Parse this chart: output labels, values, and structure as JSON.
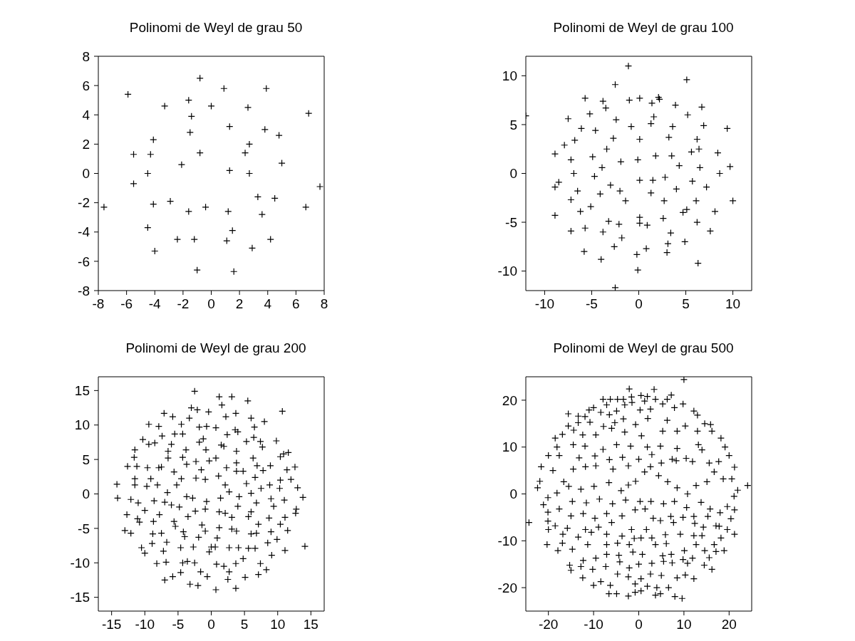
{
  "chart_data": [
    {
      "type": "scatter",
      "title": "Polinomi de Weyl de grau 50",
      "marker": "cross",
      "color": "#000000",
      "xlim": [
        -8,
        8
      ],
      "ylim": [
        -8,
        8
      ],
      "xticks": [
        -8,
        -6,
        -4,
        -2,
        0,
        2,
        4,
        6,
        8
      ],
      "yticks": [
        -8,
        -6,
        -4,
        -2,
        0,
        2,
        4,
        6,
        8
      ],
      "x": [
        -0.8,
        -5.9,
        0.9,
        3.9,
        -1.6,
        -3.3,
        0,
        2.6,
        6.9,
        -1.4,
        1.3,
        3.8,
        4.8,
        -1.5,
        -4.1,
        2.7,
        -5.5,
        -4.3,
        -0.8,
        2.4,
        -2.1,
        5.0,
        1.3,
        2.7,
        -4.5,
        -5.5,
        7.7,
        3.3,
        4.5,
        -7.6,
        -2.9,
        -4.1,
        -0.4,
        -1.6,
        1.2,
        6.7,
        3.6,
        -4.5,
        1.5,
        -2.4,
        -1.2,
        1.1,
        4.2,
        2.9,
        -4.0,
        -1.0,
        1.6
      ],
      "values": [
        6.5,
        5.4,
        5.8,
        5.8,
        5.0,
        4.6,
        4.6,
        4.5,
        4.1,
        3.9,
        3.2,
        3.0,
        2.6,
        2.8,
        2.3,
        2.0,
        1.3,
        1.3,
        1.4,
        1.4,
        0.6,
        0.7,
        0.2,
        0,
        0,
        -0.7,
        -0.9,
        -1.6,
        -1.7,
        -2.3,
        -1.9,
        -2.1,
        -2.3,
        -2.6,
        -2.6,
        -2.3,
        -2.8,
        -3.7,
        -3.9,
        -4.5,
        -4.5,
        -4.6,
        -4.5,
        -5.1,
        -5.3,
        -6.6,
        -6.7
      ]
    },
    {
      "type": "scatter",
      "title": "Polinomi de Weyl de grau 100",
      "marker": "cross",
      "color": "#000000",
      "xlim": [
        -12,
        12
      ],
      "ylim": [
        -12,
        12
      ],
      "xticks": [
        -10,
        -5,
        0,
        5,
        10
      ],
      "yticks": [
        -10,
        -5,
        0,
        5,
        10
      ],
      "x": [
        -1.1,
        -2.5,
        5.1,
        -5.7,
        -3.8,
        -1.0,
        0.1,
        1.4,
        2.1,
        2.2,
        3.9,
        6.7,
        -3.5,
        -5.2,
        -12.0,
        -7.5,
        -2.4,
        1.6,
        5.2,
        -0.8,
        1.3,
        3.6,
        6.9,
        9.4,
        -6.1,
        -4.6,
        -6.8,
        -7.9,
        -2.7,
        0.1,
        3.2,
        6.2,
        6.4,
        5.6,
        8.4,
        -8.9,
        -3.4,
        -4.9,
        -7.2,
        -1.9,
        -0.1,
        1.8,
        3.5,
        4.3,
        6.5,
        9.7,
        -3.9,
        -6.9,
        8.6,
        -4.7,
        -8.5,
        -8.9,
        -3.0,
        0.1,
        1.5,
        2.8,
        5.7,
        7.2,
        -6.5,
        -2.0,
        -4.1,
        1.3,
        4.0,
        -7.2,
        -1.4,
        2.7,
        6.1,
        10.0,
        -5.1,
        -6.2,
        8.1,
        5.1,
        4.7,
        0.1,
        -3.2,
        -2.1,
        0.1,
        0.9,
        2.6,
        6.2,
        -8.9,
        -7.2,
        -5.7,
        -3.8,
        7.6,
        3.4,
        -1.8,
        4.9,
        3.1,
        -2.6,
        0.8,
        3.0,
        -0.2,
        -5.8,
        -4.0,
        6.3,
        -0.1,
        -2.5
      ],
      "values": [
        11.0,
        9.1,
        9.6,
        7.7,
        7.4,
        7.5,
        7.7,
        7.2,
        7.8,
        7.6,
        7.0,
        6.8,
        6.7,
        6.1,
        5.9,
        5.6,
        5.5,
        5.8,
        6.0,
        4.8,
        5.1,
        4.8,
        4.9,
        4.6,
        4.6,
        4.4,
        3.4,
        2.9,
        3.6,
        3.5,
        3.7,
        3.5,
        2.5,
        2.2,
        2.1,
        2.0,
        2.5,
        1.7,
        1.4,
        1.2,
        1.4,
        1.8,
        1.8,
        0.8,
        0.6,
        0.7,
        0.6,
        0.0,
        0.0,
        -0.3,
        -0.9,
        -1.4,
        -1.2,
        -0.7,
        -0.7,
        -0.4,
        -0.8,
        -1.4,
        -1.8,
        -1.8,
        -2.1,
        -2.0,
        -1.6,
        -2.7,
        -2.8,
        -2.8,
        -2.8,
        -2.8,
        -3.4,
        -3.9,
        -3.9,
        -3.7,
        -4.0,
        -4.5,
        -4.9,
        -5.2,
        -5.1,
        -5.3,
        -4.6,
        -5.0,
        -4.3,
        -5.9,
        -5.6,
        -6.0,
        -5.9,
        -6.1,
        -6.6,
        -7.0,
        -7.2,
        -7.5,
        -7.7,
        -8.1,
        -8.3,
        -8.0,
        -8.8,
        -9.2,
        -9.9,
        -11.7
      ]
    },
    {
      "type": "scatter",
      "title": "Polinomi de Weyl de grau 200",
      "marker": "cross",
      "color": "#000000",
      "xlim": [
        -17,
        17
      ],
      "ylim": [
        -17,
        17
      ],
      "xticks": [
        -15,
        -10,
        -5,
        0,
        5,
        10,
        15
      ],
      "yticks": [
        -15,
        -10,
        -5,
        0,
        5,
        10,
        15
      ],
      "x": [
        -2.5,
        1.2,
        3.1,
        5.5,
        1.6,
        -3.0,
        -2.1,
        10.7,
        -7.1,
        -5.8,
        -3.3,
        -0.4,
        2.2,
        3.7,
        6.0,
        8.0,
        -9.4,
        -7.9,
        -4.5,
        -1.8,
        -0.7,
        0.7,
        3.6,
        4.0,
        6.5,
        -10.3,
        -9.4,
        -8.5,
        -7.4,
        -5.5,
        -4.3,
        -1.2,
        -1.8,
        1.5,
        1.9,
        2.4,
        6.4,
        5.3,
        7.4,
        7.7,
        9.8,
        -11.5,
        -11.6,
        -6.5,
        -6.0,
        -6.5,
        -3.8,
        -4.3,
        -0.8,
        0.7,
        3.8,
        6.3,
        10.4,
        10.9,
        11.6,
        -12.6,
        -11.2,
        -9.6,
        -7.9,
        -7.5,
        -3.7,
        -2.3,
        -0.3,
        -1.5,
        -5.6,
        2.3,
        3.8,
        3.8,
        4.8,
        6.9,
        7.8,
        8.9,
        11.4,
        12.6,
        -14.2,
        -11.5,
        -11.5,
        -9.1,
        -9.7,
        -8.1,
        -5.2,
        -4.5,
        -2.3,
        -0.9,
        1.1,
        2.1,
        2.7,
        5.3,
        6.6,
        7.5,
        8.8,
        10.4,
        10.3,
        12.0,
        13.0,
        -14.1,
        -12.1,
        -11.0,
        -8.6,
        -7.0,
        -6.6,
        -6.0,
        -4.8,
        -3.7,
        -2.8,
        -0.7,
        1.4,
        4.2,
        6.0,
        6.8,
        9.0,
        11.0,
        13.8,
        -12.7,
        -10.0,
        -7.8,
        -0.9,
        -2.4,
        1.2,
        2.1,
        4.0,
        3.1,
        -3.5,
        6.0,
        5.6,
        8.7,
        9.4,
        12.8,
        12.7,
        11.1,
        -11.1,
        -10.8,
        -8.7,
        -5.6,
        -5.4,
        -1.4,
        -0.9,
        1.2,
        3.1,
        3.8,
        7.1,
        9.0,
        10.4,
        11.5,
        -13.0,
        -12.1,
        -8.8,
        -7.5,
        -4.2,
        -4.0,
        -1.9,
        6.0,
        6.8,
        -8.9,
        -6.7,
        0.9,
        9.9,
        -10.5,
        -10.0,
        -7.2,
        -4.6,
        -2.7,
        -0.3,
        0.0,
        0.6,
        2.7,
        4.1,
        5.6,
        6.6,
        8.5,
        11.1,
        14.1,
        9.1,
        -8.2,
        -6.8,
        -4.3,
        -3.6,
        -2.5,
        0.8,
        1.9,
        3.7,
        4.8,
        7.4,
        8.3,
        7.1,
        2.7,
        -1.6,
        -0.6,
        -4.6,
        -5.8,
        -7.0,
        2.5,
        5.1,
        -3.2,
        -2.0,
        0.7,
        3.7
      ],
      "values": [
        14.9,
        14.1,
        14.1,
        13.5,
        12.9,
        12.5,
        12.2,
        12.0,
        11.7,
        11.2,
        11.0,
        11.9,
        11.2,
        11.7,
        11.0,
        10.5,
        10.1,
        9.8,
        10.1,
        9.7,
        9.8,
        9.6,
        9.3,
        9.0,
        9.7,
        7.9,
        7.2,
        7.4,
        8.4,
        8.7,
        8.7,
        8.0,
        7.5,
        7.1,
        6.9,
        8.6,
        8.2,
        7.6,
        7.6,
        6.8,
        7.7,
        6.4,
        5.3,
        6.2,
        7.2,
        5.2,
        6.4,
        5.3,
        6.4,
        5.2,
        6.2,
        5.2,
        5.4,
        5.8,
        6.0,
        4.0,
        4.0,
        3.8,
        3.8,
        3.9,
        4.3,
        4.7,
        4.8,
        3.5,
        3.2,
        3.8,
        4.5,
        3.3,
        3.3,
        4.1,
        3.4,
        4.1,
        3.5,
        3.9,
        1.4,
        2.2,
        1.3,
        2.2,
        1.1,
        1.3,
        1.3,
        2.2,
        2.3,
        2.1,
        2.6,
        1.3,
        0.3,
        1.5,
        2.4,
        0.8,
        1.3,
        2.0,
        0.8,
        2.1,
        0.9,
        -0.6,
        -0.8,
        -1.3,
        -1.0,
        -1.2,
        0.2,
        -1.6,
        -1.9,
        -0.4,
        -0.6,
        -1.1,
        -0.6,
        -0.4,
        0.1,
        -1.3,
        -0.7,
        -0.9,
        -0.5,
        -3.0,
        -2.4,
        -3.0,
        -2.2,
        -2.5,
        -2.6,
        -2.8,
        -1.8,
        -3.4,
        -3.3,
        -2.6,
        -3.3,
        -3.5,
        -1.8,
        -2.2,
        -2.8,
        -3.4,
        -3.6,
        -4.1,
        -4.0,
        -4.0,
        -4.7,
        -4.5,
        -5.4,
        -4.9,
        -5.1,
        -5.4,
        -4.4,
        -5.5,
        -4.4,
        -5.3,
        -5.3,
        -5.7,
        -5.8,
        -5.7,
        -5.5,
        -6.2,
        -6.3,
        -5.8,
        -5.7,
        -7.2,
        -7.0,
        -6.4,
        -6.6,
        -7.8,
        -8.6,
        -8.3,
        -7.8,
        -7.7,
        -8.4,
        -7.7,
        -7.7,
        -7.8,
        -7.8,
        -7.9,
        -7.9,
        -7.1,
        -8.2,
        -7.6,
        -8.9,
        -10.1,
        -9.9,
        -10.0,
        -9.8,
        -10.0,
        -10.2,
        -10.5,
        -10.1,
        -9.4,
        -10.1,
        -11.0,
        -11.7,
        -11.3,
        -11.3,
        -12.0,
        -11.4,
        -12.0,
        -12.5,
        -12.4,
        -12.1,
        -13.1,
        -13.3,
        -13.9,
        -13.7
      ]
    },
    {
      "type": "scatter",
      "title": "Polinomi de Weyl de grau 500",
      "marker": "cross",
      "color": "#000000",
      "xlim": [
        -25,
        25
      ],
      "ylim": [
        -25,
        25
      ],
      "xticks": [
        -20,
        -10,
        0,
        10,
        20
      ],
      "yticks": [
        -20,
        -10,
        0,
        10,
        20
      ],
      "x": [
        10.0,
        -2.1,
        3.4,
        7.2,
        0.5,
        1.9,
        -7.9,
        -6.3,
        -4.7,
        -3.4,
        -1.6,
        3.7,
        6.3,
        9.8,
        -7.1,
        -3.1,
        -1.5,
        1.3,
        5.3,
        -11.0,
        -10.0,
        -8.4,
        0.3,
        7.9,
        12.2,
        -15.6,
        -13.4,
        -11.9,
        -6.5,
        -4.9,
        2.6,
        6.3,
        13.0,
        -15.6,
        -13.4,
        -10.8,
        -7.8,
        -5.3,
        -3.4,
        -0.7,
        2.0,
        10.3,
        14.6,
        15.9,
        -16.9,
        -18.5,
        -14.4,
        -12.4,
        -9.5,
        -6.0,
        -3.1,
        0.6,
        5.3,
        8.5,
        13.0,
        16.2,
        18.2,
        -18.1,
        -14.5,
        -11.9,
        -7.9,
        -4.9,
        -1.8,
        1.9,
        4.8,
        8.5,
        13.2,
        19.1,
        -20.0,
        -21.6,
        -21.9,
        -22.4,
        -24.3,
        24.1,
        21.9,
        21.2,
        20.6,
        20.0,
        -21.1,
        -20.1,
        -20.1,
        -20.1,
        -20.0,
        -20.3,
        -17.9,
        -16.9,
        -15.3,
        -15.0,
        -12.4,
        -10.2,
        -10.0,
        -8.4,
        -6.6,
        -4.9,
        -2.3,
        -0.8,
        0.5,
        1.9,
        3.7,
        4.8,
        6.6,
        8.0,
        9.6,
        10.3,
        12.2,
        14.5,
        16.2,
        15.6,
        18.9,
        21.2,
        20.4,
        21.2,
        21.1,
        19.6,
        18.2,
        16.7,
        19.6,
        17.8,
        18.0,
        18.7,
        16.7,
        15.1,
        12.7,
        10.8,
        8.5,
        6.4,
        4.4,
        1.3,
        -0.7,
        -2.3,
        -3.9,
        -6.6,
        -9.9,
        -12.8,
        -15.5,
        -18.1,
        -16.6,
        -19.0,
        -14.5,
        -11.8,
        -9.5,
        -5.7,
        -2.3,
        2.6,
        5.0,
        8.3,
        11.9,
        15.6,
        17.7,
        -17.6,
        -13.2,
        -9.7,
        -6.5,
        -3.6,
        0.0,
        2.9,
        7.4,
        10.5,
        14.0,
        -17.6,
        -14.7,
        -11.6,
        -8.7,
        -5.8,
        -2.9,
        0.3,
        2.7,
        5.5,
        7.9,
        10.6,
        13.8,
        15.8,
        -15.0,
        -12.3,
        -9.7,
        -7.1,
        -3.7,
        -0.8,
        1.4,
        3.2,
        7.1,
        9.8,
        12.2,
        15.3,
        -18.5,
        -15.8,
        -11.8,
        -8.9,
        -6.0,
        -1.6,
        1.7,
        4.8,
        7.7,
        12.4,
        14.3,
        17.1,
        -16.8,
        -13.4,
        -10.5,
        -7.1,
        -3.7,
        -1.0,
        2.9,
        5.9,
        9.2,
        12.2,
        14.0,
        -14.7,
        -11.3,
        -7.1,
        -4.7,
        -2.1,
        0.5,
        3.7,
        6.1,
        10.1,
        12.7,
        14.6,
        17.1,
        -12.3,
        -9.5,
        -7.1,
        -4.4,
        -1.3,
        0.8,
        5.3,
        7.2,
        9.8,
        11.9,
        -12.8,
        -7.3,
        -4.2,
        -2.1,
        0.0,
        2.9,
        5.5,
        7.4,
        10.8,
        -4.7,
        -2.3,
        0.5,
        2.6,
        5.0,
        8.5,
        -6.3,
        -0.8,
        4.0
      ],
      "values": [
        24.4,
        22.4,
        22.3,
        21.1,
        21.0,
        20.8,
        20.2,
        20.2,
        20.2,
        20.2,
        20.7,
        20.2,
        20.2,
        19.2,
        19.0,
        19.0,
        19.5,
        19.8,
        19.2,
        17.9,
        18.4,
        17.4,
        17.9,
        18.4,
        17.7,
        17.1,
        16.6,
        16.5,
        16.9,
        17.7,
        18.1,
        15.7,
        16.8,
        14.5,
        15.2,
        15.3,
        14.4,
        15.2,
        16.0,
        14.8,
        16.1,
        14.5,
        15.0,
        14.8,
        12.7,
        11.9,
        13.6,
        12.6,
        12.6,
        14.0,
        13.2,
        12.4,
        13.4,
        13.4,
        13.4,
        13.4,
        11.9,
        10.0,
        10.5,
        10.2,
        9.5,
        10.5,
        10.2,
        10.0,
        10.2,
        9.7,
        10.5,
        10.0,
        8.2,
        5.8,
        2.7,
        1.3,
        -6.1,
        1.8,
        0.8,
        5.7,
        3.2,
        8.2,
        -2.3,
        -0.8,
        -3.9,
        -5.8,
        -7.6,
        -10.8,
        -12.1,
        -10.5,
        -15.2,
        -16.3,
        -17.9,
        -16.1,
        -19.5,
        -18.7,
        -21.3,
        -21.3,
        -21.8,
        -21.0,
        -20.7,
        -19.7,
        -21.6,
        -21.3,
        -20.0,
        -21.9,
        -22.3,
        -17.3,
        -18.1,
        -15.2,
        -16.1,
        -13.6,
        -12.1,
        -8.6,
        -5.3,
        -3.4,
        -0.5,
        -7.6,
        -9.4,
        -10.8,
        -2.7,
        -6.9,
        -4.0,
        3.2,
        4.7,
        2.6,
        1.8,
        0.0,
        1.3,
        2.6,
        3.9,
        4.7,
        2.7,
        1.9,
        0.7,
        2.4,
        1.6,
        1.0,
        1.6,
        0.2,
        2.6,
        5.0,
        5.3,
        5.8,
        6.0,
        5.3,
        6.0,
        5.8,
        6.6,
        7.1,
        6.9,
        6.6,
        6.9,
        8.2,
        7.7,
        8.1,
        7.3,
        7.8,
        7.4,
        8.4,
        7.4,
        7.6,
        9.4,
        -3.2,
        -1.6,
        -1.9,
        -1.1,
        -2.1,
        -1.3,
        -1.6,
        -1.6,
        -2.1,
        -1.6,
        -2.9,
        -1.8,
        -3.2,
        -4.7,
        -4.2,
        -5.2,
        -4.2,
        -4.7,
        -3.4,
        -3.2,
        -5.2,
        -4.8,
        -5.0,
        -4.8,
        -4.8,
        -6.8,
        -7.3,
        -7.6,
        -7.1,
        -6.1,
        -7.6,
        -7.6,
        -5.7,
        -6.1,
        -6.3,
        -7.1,
        -6.8,
        -8.6,
        -9.2,
        -8.2,
        -8.6,
        -9.0,
        -9.5,
        -9.4,
        -8.7,
        -8.6,
        -8.9,
        -8.9,
        -11.8,
        -10.8,
        -10.8,
        -10.5,
        -10.8,
        -9.4,
        -10.8,
        -10.6,
        -12.1,
        -10.8,
        -12.1,
        -12.3,
        -14.2,
        -13.7,
        -12.9,
        -13.1,
        -12.4,
        -12.9,
        -13.2,
        -12.9,
        -14.0,
        -13.7,
        -15.5,
        -15.5,
        -14.5,
        -15.8,
        -15.0,
        -14.8,
        -14.4,
        -14.7,
        -14.8,
        -17.1,
        -17.7,
        -18.1,
        -17.1,
        -17.4,
        -17.9,
        -19.5,
        -19.2,
        -20.0
      ]
    }
  ]
}
